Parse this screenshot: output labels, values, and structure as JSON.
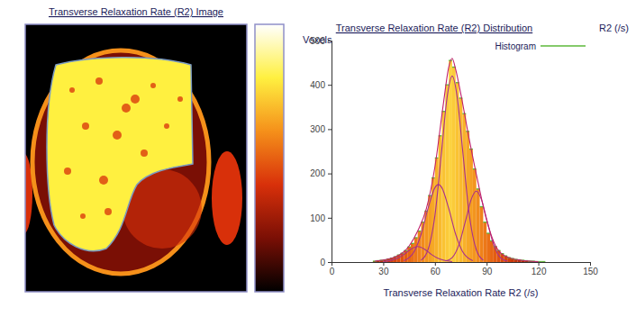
{
  "chart_data": [
    {
      "type": "image",
      "title": "Transverse Relaxation Rate (R2) Image",
      "colors": [
        "#000000",
        "#7a0f05",
        "#d8300a",
        "#f5901a",
        "#fff040",
        "#ffffff"
      ]
    },
    {
      "type": "histogram",
      "title": "Transverse Relaxation Rate (R2) Distribution",
      "xlabel": "Transverse Relaxation Rate R2 (/s)",
      "ylabel": "Voxels",
      "annotations": [
        "R2 (/s)"
      ],
      "xlim": [
        0,
        150
      ],
      "xticks": [
        0,
        30,
        60,
        90,
        120,
        150
      ],
      "ylim": [
        0,
        500
      ],
      "yticks": [
        0,
        100,
        200,
        300,
        400,
        500
      ],
      "grid": false,
      "legend": "upper right",
      "series": [
        {
          "name": "Histogram",
          "type": "histogram",
          "color": "#5db83a",
          "bins": [
            24,
            26,
            28,
            30,
            32,
            34,
            36,
            38,
            40,
            42,
            44,
            46,
            48,
            50,
            52,
            54,
            56,
            58,
            60,
            62,
            64,
            66,
            68,
            70,
            72,
            74,
            76,
            78,
            80,
            82,
            84,
            86,
            88,
            90,
            92,
            94,
            96,
            98,
            100,
            102,
            104,
            106,
            108,
            110,
            112,
            114,
            116,
            118,
            120,
            122,
            124
          ],
          "values": [
            2,
            3,
            4,
            5,
            7,
            9,
            12,
            16,
            20,
            26,
            34,
            42,
            55,
            70,
            90,
            115,
            150,
            190,
            235,
            285,
            340,
            400,
            455,
            440,
            405,
            370,
            335,
            295,
            255,
            210,
            165,
            125,
            90,
            65,
            48,
            35,
            26,
            19,
            14,
            10,
            8,
            6,
            5,
            4,
            3,
            2,
            2,
            1,
            1,
            1
          ]
        },
        {
          "type": "line",
          "color": "#a8308c",
          "x": [
            30,
            38,
            42,
            46,
            50,
            54,
            58,
            62,
            70
          ],
          "values": [
            1,
            8,
            17,
            29,
            35,
            29,
            17,
            8,
            1
          ]
        },
        {
          "type": "line",
          "color": "#a8308c",
          "x": [
            42,
            48,
            52,
            56,
            60,
            62,
            64,
            68,
            72,
            76,
            82
          ],
          "values": [
            3,
            24,
            63,
            121,
            168,
            175,
            168,
            121,
            63,
            24,
            3
          ]
        },
        {
          "type": "line",
          "color": "#a8308c",
          "x": [
            52,
            56,
            60,
            64,
            67,
            70,
            73,
            76,
            80,
            84,
            88
          ],
          "values": [
            4,
            28,
            105,
            255,
            370,
            420,
            370,
            255,
            105,
            28,
            4
          ]
        },
        {
          "type": "line",
          "color": "#a8308c",
          "x": [
            66,
            70,
            74,
            78,
            81,
            84,
            87,
            90,
            94,
            98,
            102
          ],
          "values": [
            2,
            10,
            40,
            97,
            141,
            160,
            141,
            97,
            40,
            10,
            2
          ]
        },
        {
          "type": "line",
          "color": "#c0206a",
          "x": [
            25,
            35,
            45,
            50,
            55,
            60,
            65,
            68,
            70,
            72,
            75,
            80,
            85,
            90,
            95,
            100,
            110,
            120
          ],
          "values": [
            2,
            9,
            36,
            70,
            120,
            215,
            360,
            440,
            460,
            435,
            380,
            275,
            180,
            95,
            38,
            15,
            4,
            1
          ]
        }
      ]
    }
  ]
}
